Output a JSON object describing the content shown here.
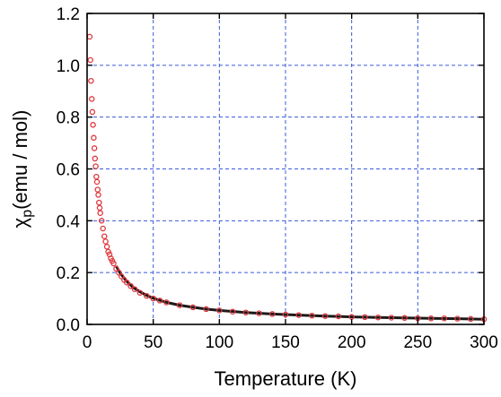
{
  "chart_data": {
    "type": "scatter",
    "xlabel": "Temperature (K)",
    "ylabel": {
      "symbol": "χ",
      "subscript": "p",
      "unit": "(emu / mol)"
    },
    "xlim": [
      0,
      300
    ],
    "ylim": [
      0,
      1.2
    ],
    "x_ticks": [
      "0",
      "50",
      "100",
      "150",
      "200",
      "250",
      "300"
    ],
    "y_ticks": [
      "0.0",
      "0.2",
      "0.4",
      "0.6",
      "0.8",
      "1.0",
      "1.2"
    ],
    "grid": true,
    "series": [
      {
        "kind": "measured",
        "marker": "open-circle",
        "color": "#e0383e",
        "x": [
          2,
          2.5,
          3,
          3.5,
          4,
          4.5,
          5,
          5.5,
          6,
          6.5,
          7,
          7.5,
          8,
          8.5,
          9,
          9.5,
          10,
          11,
          12,
          13,
          14,
          15,
          16,
          17,
          18,
          19,
          20,
          22,
          24,
          26,
          28,
          30,
          33,
          36,
          40,
          45,
          50,
          55,
          60,
          70,
          80,
          90,
          100,
          110,
          120,
          130,
          140,
          150,
          160,
          170,
          180,
          190,
          200,
          210,
          220,
          230,
          240,
          250,
          260,
          270,
          280,
          290,
          300
        ],
        "y": [
          1.11,
          1.02,
          0.94,
          0.87,
          0.82,
          0.77,
          0.72,
          0.68,
          0.64,
          0.61,
          0.57,
          0.55,
          0.52,
          0.5,
          0.47,
          0.45,
          0.43,
          0.4,
          0.37,
          0.34,
          0.32,
          0.3,
          0.28,
          0.27,
          0.255,
          0.245,
          0.235,
          0.215,
          0.2,
          0.185,
          0.172,
          0.162,
          0.148,
          0.136,
          0.122,
          0.11,
          0.1,
          0.092,
          0.085,
          0.074,
          0.066,
          0.059,
          0.054,
          0.049,
          0.046,
          0.043,
          0.04,
          0.038,
          0.036,
          0.034,
          0.032,
          0.031,
          0.029,
          0.028,
          0.027,
          0.026,
          0.025,
          0.024,
          0.023,
          0.023,
          0.022,
          0.021,
          0.02
        ]
      },
      {
        "kind": "fit",
        "color": "#1a1a1a",
        "x": [
          22,
          25,
          30,
          35,
          40,
          45,
          50,
          60,
          70,
          80,
          90,
          100,
          120,
          140,
          160,
          180,
          200,
          220,
          240,
          260,
          280,
          300
        ],
        "y": [
          0.225,
          0.198,
          0.166,
          0.142,
          0.126,
          0.112,
          0.101,
          0.085,
          0.074,
          0.066,
          0.059,
          0.054,
          0.046,
          0.04,
          0.036,
          0.032,
          0.029,
          0.027,
          0.025,
          0.023,
          0.022,
          0.02
        ]
      }
    ]
  }
}
